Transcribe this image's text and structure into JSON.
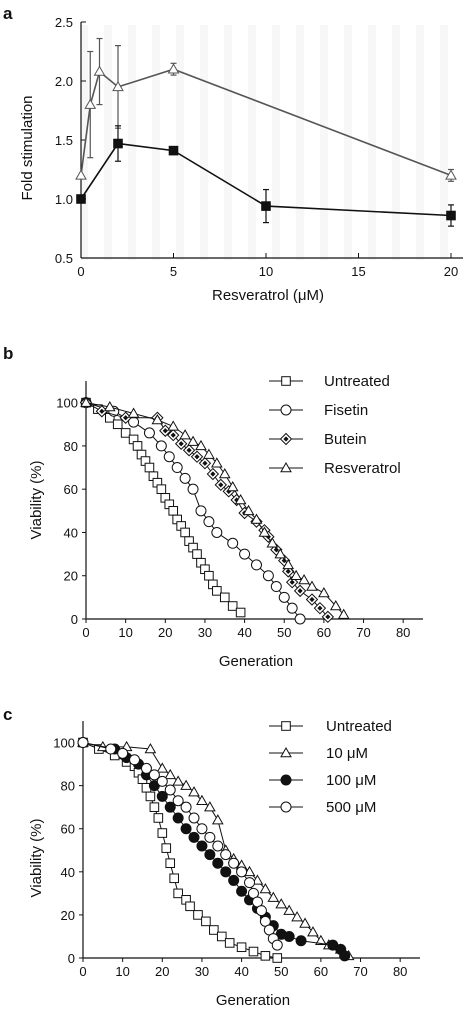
{
  "chart_data": [
    {
      "panel": "a",
      "type": "line",
      "xlabel": "Resveratrol (μM)",
      "ylabel": "Fold stimulation",
      "xlim": [
        0,
        20
      ],
      "ylim": [
        0.5,
        2.5
      ],
      "xticks": [
        0,
        5,
        10,
        15,
        20
      ],
      "yticks": [
        0.5,
        1.0,
        1.5,
        2.0,
        2.5
      ],
      "xtick_labels": [
        "0",
        "5",
        "10",
        "15",
        "20"
      ],
      "ytick_labels": [
        "0.5",
        "1.0",
        "1.5",
        "2.0",
        "2.5"
      ],
      "grid": false,
      "series": [
        {
          "marker": "triangle-open",
          "color": "#555555",
          "x": [
            0,
            0.5,
            1,
            2,
            5,
            20
          ],
          "y": [
            1.2,
            1.8,
            2.08,
            1.95,
            2.1,
            1.2
          ],
          "err": [
            0.0,
            0.45,
            0.28,
            0.35,
            0.05,
            0.05
          ]
        },
        {
          "marker": "square-filled",
          "color": "#111111",
          "x": [
            0,
            2,
            5,
            10,
            20
          ],
          "y": [
            1.0,
            1.47,
            1.41,
            0.94,
            0.86
          ],
          "err": [
            0.0,
            0.15,
            0.03,
            0.14,
            0.09
          ]
        }
      ]
    },
    {
      "panel": "b",
      "type": "line",
      "xlabel": "Generation",
      "ylabel": "Viability (%)",
      "xlim": [
        0,
        85
      ],
      "ylim": [
        0,
        110
      ],
      "xticks": [
        0,
        10,
        20,
        30,
        40,
        50,
        60,
        70,
        80
      ],
      "yticks": [
        0,
        20,
        40,
        60,
        80,
        100
      ],
      "xtick_labels": [
        "0",
        "10",
        "20",
        "30",
        "40",
        "50",
        "60",
        "70",
        "80"
      ],
      "ytick_labels": [
        "0",
        "20",
        "40",
        "60",
        "80",
        "100"
      ],
      "legend_position": "top-right",
      "grid": false,
      "series": [
        {
          "name": "Untreated",
          "marker": "square-open",
          "x": [
            0,
            3,
            6,
            8,
            10,
            12,
            13,
            14,
            15,
            16,
            17,
            18,
            19,
            20,
            21,
            22,
            23,
            24,
            25,
            26,
            27,
            28,
            29,
            30,
            31,
            32,
            33,
            35,
            37,
            39
          ],
          "y": [
            100,
            97,
            93,
            90,
            86,
            83,
            80,
            76,
            73,
            70,
            66,
            63,
            60,
            56,
            53,
            50,
            46,
            43,
            40,
            36,
            33,
            30,
            26,
            23,
            20,
            16,
            13,
            10,
            6,
            3
          ]
        },
        {
          "name": "Fisetin",
          "marker": "circle-open",
          "x": [
            0,
            7,
            12,
            16,
            19,
            21,
            23,
            25,
            27,
            29,
            31,
            33,
            37,
            40,
            43,
            46,
            48,
            50,
            52,
            54
          ],
          "y": [
            100,
            96,
            91,
            86,
            80,
            75,
            70,
            65,
            60,
            50,
            45,
            40,
            35,
            30,
            25,
            20,
            15,
            10,
            5,
            0
          ]
        },
        {
          "name": "Butein",
          "marker": "diamond-filled",
          "x": [
            0,
            4,
            10,
            18,
            20,
            22,
            24,
            26,
            28,
            30,
            32,
            34,
            36,
            38,
            40,
            43,
            45,
            46,
            48,
            50,
            51,
            52,
            54,
            57,
            59,
            61
          ],
          "y": [
            100,
            96,
            93,
            93,
            87,
            85,
            81,
            78,
            75,
            72,
            67,
            62,
            59,
            55,
            49,
            45,
            41,
            38,
            32,
            27,
            22,
            17,
            13,
            9,
            5,
            1
          ]
        },
        {
          "name": "Resveratrol",
          "marker": "triangle-open",
          "x": [
            0,
            6,
            12,
            18,
            22,
            25,
            27,
            29,
            31,
            33,
            35,
            37,
            39,
            41,
            43,
            45,
            47,
            49,
            51,
            53,
            55,
            57,
            60,
            63,
            65
          ],
          "y": [
            100,
            98,
            95,
            92,
            89,
            85,
            82,
            80,
            76,
            72,
            67,
            61,
            55,
            50,
            46,
            40,
            35,
            30,
            25,
            20,
            18,
            15,
            12,
            6,
            2
          ]
        }
      ]
    },
    {
      "panel": "c",
      "type": "line",
      "xlabel": "Generation",
      "ylabel": "Viability (%)",
      "xlim": [
        0,
        85
      ],
      "ylim": [
        0,
        110
      ],
      "xticks": [
        0,
        10,
        20,
        30,
        40,
        50,
        60,
        70,
        80
      ],
      "yticks": [
        0,
        20,
        40,
        60,
        80,
        100
      ],
      "xtick_labels": [
        "0",
        "10",
        "20",
        "30",
        "40",
        "50",
        "60",
        "70",
        "80"
      ],
      "ytick_labels": [
        "0",
        "20",
        "40",
        "60",
        "80",
        "100"
      ],
      "legend_position": "top-right",
      "grid": false,
      "series": [
        {
          "name": "Untreated",
          "marker": "square-open",
          "x": [
            0,
            4,
            8,
            11,
            13,
            14,
            15,
            16,
            17,
            18,
            19,
            20,
            21,
            22,
            23,
            24,
            26,
            27,
            29,
            31,
            33,
            35,
            37,
            40,
            43,
            46,
            49
          ],
          "y": [
            100,
            97,
            94,
            91,
            89,
            86,
            83,
            79,
            75,
            70,
            65,
            58,
            51,
            44,
            37,
            30,
            27,
            24,
            20,
            17,
            13,
            10,
            7,
            5,
            3,
            1,
            0
          ]
        },
        {
          "name": "10 μM",
          "marker": "triangle-open",
          "x": [
            0,
            5,
            11,
            17,
            20,
            22,
            24,
            26,
            28,
            30,
            32,
            34,
            36,
            38,
            40,
            42,
            44,
            46,
            48,
            50,
            52,
            54,
            56,
            58,
            60,
            62,
            65,
            67
          ],
          "y": [
            100,
            98,
            98,
            97,
            88,
            85,
            82,
            80,
            77,
            73,
            70,
            64,
            50,
            46,
            43,
            40,
            36,
            32,
            28,
            25,
            22,
            19,
            16,
            12,
            8,
            6,
            4,
            1
          ]
        },
        {
          "name": "100 μM",
          "marker": "circle-filled",
          "x": [
            0,
            8,
            11,
            14,
            16,
            18,
            20,
            22,
            24,
            26,
            28,
            30,
            32,
            34,
            36,
            38,
            40,
            42,
            44,
            46,
            48,
            50,
            52,
            55,
            63,
            65,
            66
          ],
          "y": [
            100,
            97,
            93,
            90,
            85,
            80,
            75,
            70,
            65,
            60,
            56,
            52,
            48,
            44,
            40,
            36,
            31,
            27,
            23,
            19,
            15,
            11,
            10,
            8,
            6,
            4,
            1
          ]
        },
        {
          "name": "500 μM",
          "marker": "circle-open",
          "x": [
            0,
            7,
            10,
            13,
            16,
            18,
            20,
            22,
            24,
            26,
            28,
            30,
            32,
            34,
            36,
            38,
            40,
            42,
            43,
            44,
            45,
            46,
            47,
            48,
            49
          ],
          "y": [
            100,
            97,
            95,
            92,
            88,
            85,
            82,
            78,
            73,
            70,
            65,
            60,
            56,
            52,
            48,
            44,
            40,
            35,
            30,
            26,
            22,
            17,
            13,
            9,
            6
          ]
        }
      ]
    }
  ]
}
